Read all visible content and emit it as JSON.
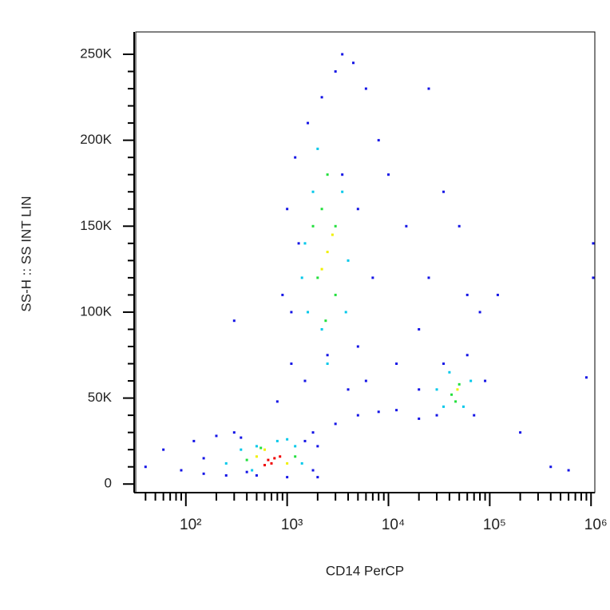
{
  "chart_data": {
    "type": "scatter",
    "x_label": "CD14 PerCP",
    "y_label": "SS-H :: SS INT LIN",
    "xscale": "log",
    "xlim": [
      32,
      1090000
    ],
    "ylim": [
      -5000,
      263000
    ],
    "xticks": [
      {
        "value": 100,
        "label": "10²"
      },
      {
        "value": 1000,
        "label": "10³"
      },
      {
        "value": 10000,
        "label": "10⁴"
      },
      {
        "value": 100000,
        "label": "10⁵"
      },
      {
        "value": 1000000,
        "label": "10⁶"
      }
    ],
    "yticks": [
      0,
      {
        "value": 50000,
        "label": "50K"
      },
      {
        "value": 100000,
        "label": "100K"
      },
      {
        "value": 150000,
        "label": "150K"
      },
      {
        "value": 200000,
        "label": "200K"
      },
      {
        "value": 250000,
        "label": "250K"
      }
    ],
    "series": [
      {
        "color": "#1414e6",
        "x": [
          40,
          60,
          90,
          120,
          150,
          200,
          250,
          300,
          350,
          1500,
          2000,
          1800,
          3000,
          5000,
          8000,
          12000,
          20000,
          800,
          1100,
          900,
          1000,
          1200,
          1600,
          2200,
          3000,
          3500,
          4500,
          6000,
          8000,
          10000,
          15000,
          25000,
          35000,
          50000,
          60000,
          80000,
          20000,
          12000,
          6000,
          4000,
          5000,
          7000,
          5000,
          3500,
          1300,
          1100,
          1500,
          2500,
          20000,
          30000,
          70000,
          90000,
          60000,
          35000,
          200000,
          400000,
          900000,
          1050000,
          1050000,
          600000,
          120000,
          300,
          25000,
          2000,
          500,
          1000,
          1800,
          400,
          150
        ],
        "y": [
          10000,
          20000,
          8000,
          25000,
          6000,
          28000,
          5000,
          30000,
          27000,
          25000,
          22000,
          8000,
          35000,
          40000,
          42000,
          43000,
          38000,
          48000,
          70000,
          110000,
          160000,
          190000,
          210000,
          225000,
          240000,
          250000,
          245000,
          230000,
          200000,
          180000,
          150000,
          120000,
          170000,
          150000,
          110000,
          100000,
          90000,
          70000,
          60000,
          55000,
          80000,
          120000,
          160000,
          180000,
          140000,
          100000,
          60000,
          75000,
          55000,
          40000,
          40000,
          60000,
          75000,
          70000,
          30000,
          10000,
          62000,
          140000,
          120000,
          8000,
          110000,
          95000,
          230000,
          4000,
          5000,
          4000,
          30000,
          7000,
          15000
        ]
      },
      {
        "color": "#00c8ea",
        "x": [
          250,
          350,
          500,
          1200,
          1400,
          450,
          1500,
          1800,
          2000,
          3500,
          4000,
          3800,
          2200,
          1600,
          1400,
          2500,
          35000,
          55000,
          65000,
          40000,
          30000,
          800,
          1000
        ],
        "y": [
          12000,
          20000,
          22000,
          22000,
          12000,
          8000,
          140000,
          170000,
          195000,
          170000,
          130000,
          100000,
          90000,
          100000,
          120000,
          70000,
          45000,
          45000,
          60000,
          65000,
          55000,
          25000,
          26000
        ]
      },
      {
        "color": "#22e03c",
        "x": [
          1800,
          2200,
          3000,
          2000,
          3000,
          2500,
          2400,
          400,
          1200,
          42000,
          50000,
          46000,
          550
        ],
        "y": [
          150000,
          160000,
          150000,
          120000,
          110000,
          180000,
          95000,
          14000,
          16000,
          52000,
          58000,
          48000,
          21000
        ]
      },
      {
        "color": "#f0f000",
        "x": [
          2500,
          2200,
          2800,
          500,
          1000,
          48000,
          600
        ],
        "y": [
          135000,
          125000,
          145000,
          16000,
          12000,
          55000,
          20000
        ]
      },
      {
        "color": "#f00000",
        "x": [
          650,
          750,
          700,
          850,
          600
        ],
        "y": [
          14000,
          15000,
          12000,
          16000,
          11000
        ]
      }
    ]
  }
}
